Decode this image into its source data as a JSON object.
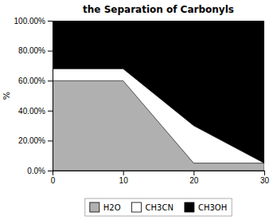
{
  "chart_data": {
    "type": "area",
    "title": "the Separation of Carbonyls",
    "ylabel": "%",
    "x": [
      0,
      10,
      20,
      30
    ],
    "xlim": [
      0,
      30
    ],
    "xticks": [
      0,
      10,
      20,
      30
    ],
    "ylim": [
      0,
      100
    ],
    "yticks": [
      {
        "value": 0,
        "label": "0.0%"
      },
      {
        "value": 20,
        "label": "20.00%"
      },
      {
        "value": 40,
        "label": "40.00%"
      },
      {
        "value": 60,
        "label": "60.00%"
      },
      {
        "value": 80,
        "label": "80.00%"
      },
      {
        "value": 100,
        "label": "100.00%"
      }
    ],
    "stacked": true,
    "grid": false,
    "legend": "bottom",
    "series": [
      {
        "name": "H2O",
        "color": "#b0b0b0",
        "values": [
          60,
          60,
          5,
          5
        ]
      },
      {
        "name": "CH3CN",
        "color": "#ffffff",
        "values": [
          8,
          8,
          25,
          0
        ]
      },
      {
        "name": "CH3OH",
        "color": "#000000",
        "values": [
          32,
          32,
          70,
          95
        ]
      }
    ]
  }
}
